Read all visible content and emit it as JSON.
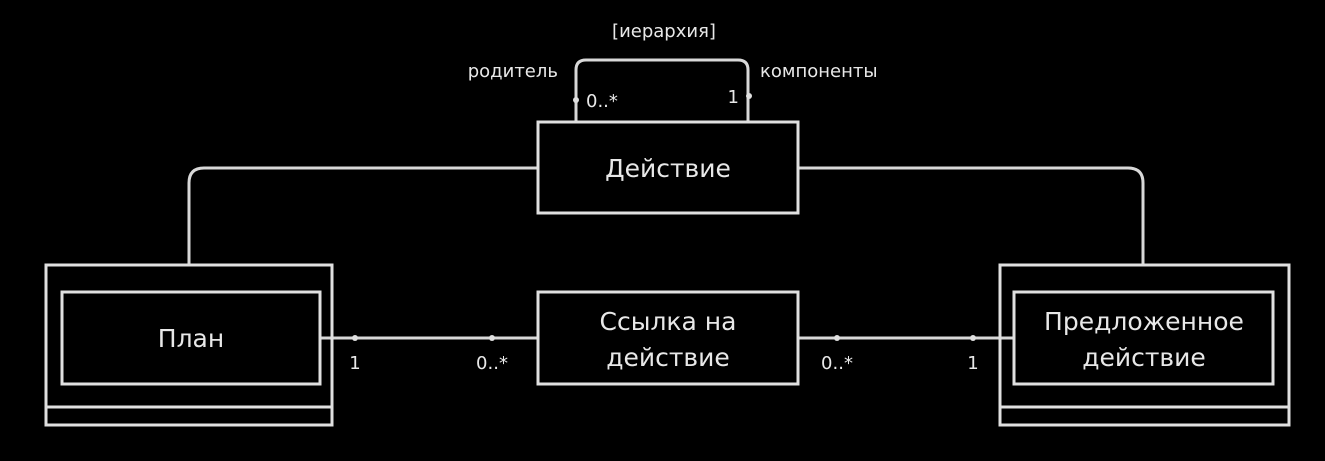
{
  "diagram": {
    "nodes": {
      "action": "Действие",
      "plan": "План",
      "action_link": [
        "Ссылка на",
        "действие"
      ],
      "proposed_action": [
        "Предложенное",
        "действие"
      ]
    },
    "self_association": {
      "name": "[иерархия]",
      "role_parent": "родитель",
      "role_components": "компоненты",
      "mult_parent": "0..*",
      "mult_components": "1"
    },
    "plan_link": {
      "mult_plan": "1",
      "mult_link": "0..*"
    },
    "link_proposed": {
      "mult_link": "0..*",
      "mult_proposed": "1"
    }
  }
}
